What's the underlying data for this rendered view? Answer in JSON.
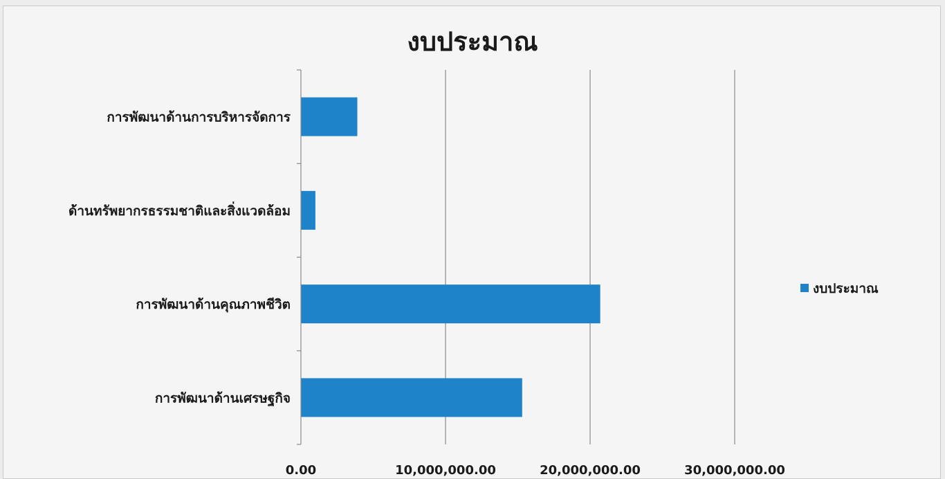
{
  "chart_data": {
    "type": "bar",
    "orientation": "horizontal",
    "title": "งบประมาณ",
    "categories": [
      "การพัฒนาด้านการบริหารจัดการ",
      "ด้านทรัพยากรธรรมชาติและสิ่งแวดล้อม",
      "การพัฒนาด้านคุณภาพชีวิต",
      "การพัฒนาด้านเศรษฐกิจ"
    ],
    "series": [
      {
        "name": "งบประมาณ",
        "values": [
          3900000,
          1000000,
          20700000,
          15300000
        ],
        "color": "#1f83c9"
      }
    ],
    "xlim": [
      0,
      30000000
    ],
    "xticks": [
      "0.00",
      "10,000,000.00",
      "20,000,000.00",
      "30,000,000.00"
    ],
    "grid": true,
    "legend": "right"
  }
}
